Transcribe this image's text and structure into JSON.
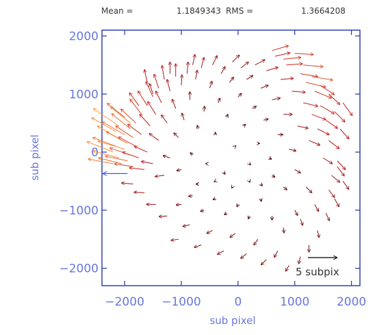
{
  "header": {
    "mean_label": "Mean =",
    "mean_value": "1.1849343",
    "rms_label": "RMS =",
    "rms_value": "1.3664208"
  },
  "chart_data": {
    "type": "quiver",
    "title": "",
    "xlabel": "sub pixel",
    "ylabel": "sub pixel",
    "xlim": [
      -2400,
      2150
    ],
    "ylim": [
      -2300,
      2100
    ],
    "xticks": [
      -2000,
      -1000,
      0,
      1000,
      2000
    ],
    "yticks": [
      -2000,
      -1000,
      0,
      1000,
      2000
    ],
    "xtick_labels": [
      "−2000",
      "−1000",
      "0",
      "1000",
      "2000"
    ],
    "ytick_labels": [
      "−2000",
      "−1000",
      "0",
      "1000",
      "2000"
    ],
    "legend": {
      "label": "5 subpix",
      "magnitude_subpix": 5,
      "placement": "bottom-right"
    },
    "reference_arrow": {
      "x": -1950,
      "y": -370,
      "u": -4.2,
      "v": 0,
      "color": "#4455ee"
    },
    "colors": {
      "axis": "#2233aa",
      "labels": "#6677dd",
      "arrow_low": "#3a0008",
      "arrow_mid": "#c01818",
      "arrow_high": "#ff9a40",
      "scale_arrow": "#000000"
    },
    "vectors": [
      [
        -2200,
        0,
        -4.5,
        1.8
      ],
      [
        -2150,
        100,
        -4.0,
        1.5
      ],
      [
        -2100,
        -100,
        -4.5,
        1.2
      ],
      [
        -2050,
        200,
        -4.2,
        2.5
      ],
      [
        -2000,
        300,
        -3.8,
        2.2
      ],
      [
        -2050,
        -200,
        -4.0,
        1.0
      ],
      [
        -2000,
        50,
        -4.6,
        1.4
      ],
      [
        -1950,
        150,
        -3.6,
        2.0
      ],
      [
        -1950,
        -150,
        -3.8,
        0.8
      ],
      [
        -1900,
        400,
        -3.2,
        2.6
      ],
      [
        -1900,
        -50,
        -3.5,
        1.2
      ],
      [
        -1850,
        250,
        -3.0,
        2.0
      ],
      [
        -1850,
        -250,
        -3.2,
        0.5
      ],
      [
        -1800,
        500,
        -2.6,
        2.4
      ],
      [
        -1800,
        100,
        -3.0,
        1.6
      ],
      [
        -1750,
        -100,
        -2.8,
        1.0
      ],
      [
        -1700,
        650,
        -2.0,
        2.6
      ],
      [
        -1700,
        300,
        -2.4,
        1.8
      ],
      [
        -1650,
        -300,
        -2.6,
        0.3
      ],
      [
        -1600,
        800,
        -1.6,
        2.5
      ],
      [
        -1600,
        0,
        -2.2,
        1.0
      ],
      [
        -1550,
        450,
        -1.8,
        2.0
      ],
      [
        -1500,
        950,
        -1.2,
        2.6
      ],
      [
        -1500,
        -200,
        -2.0,
        0.4
      ],
      [
        -1450,
        650,
        -1.4,
        2.2
      ],
      [
        -1400,
        1100,
        -0.8,
        2.4
      ],
      [
        -1400,
        200,
        -1.6,
        1.2
      ],
      [
        -1350,
        850,
        -1.0,
        2.0
      ],
      [
        -1300,
        1250,
        -0.4,
        2.4
      ],
      [
        -1300,
        -400,
        -1.6,
        -0.2
      ],
      [
        -1250,
        500,
        -1.0,
        1.4
      ],
      [
        -1200,
        1050,
        -0.5,
        2.0
      ],
      [
        -1200,
        -100,
        -1.2,
        0.4
      ],
      [
        -1100,
        1300,
        0.0,
        2.2
      ],
      [
        -1100,
        750,
        -0.6,
        1.6
      ],
      [
        -1050,
        250,
        -0.8,
        0.8
      ],
      [
        -1000,
        1150,
        0.1,
        1.8
      ],
      [
        -1000,
        -300,
        -0.8,
        -0.2
      ],
      [
        -950,
        550,
        -0.4,
        1.2
      ],
      [
        -900,
        1350,
        0.2,
        2.0
      ],
      [
        -850,
        900,
        0.0,
        1.4
      ],
      [
        -800,
        -50,
        -0.4,
        0.4
      ],
      [
        -750,
        1250,
        0.3,
        1.6
      ],
      [
        -700,
        400,
        -0.2,
        0.6
      ],
      [
        -650,
        1450,
        0.5,
        1.8
      ],
      [
        -600,
        700,
        0.1,
        0.9
      ],
      [
        -550,
        -200,
        -0.2,
        0.0
      ],
      [
        -500,
        1100,
        0.4,
        1.2
      ],
      [
        -450,
        1500,
        0.8,
        1.6
      ],
      [
        -400,
        300,
        0.0,
        0.4
      ],
      [
        -350,
        850,
        0.3,
        0.8
      ],
      [
        -300,
        1350,
        0.7,
        1.2
      ],
      [
        -250,
        -350,
        0.2,
        -0.3
      ],
      [
        -200,
        600,
        0.2,
        0.5
      ],
      [
        -150,
        1200,
        0.7,
        0.9
      ],
      [
        -100,
        1550,
        1.2,
        1.2
      ],
      [
        -50,
        100,
        0.1,
        0.1
      ],
      [
        0,
        950,
        0.6,
        0.6
      ],
      [
        50,
        1450,
        1.3,
        1.0
      ],
      [
        100,
        450,
        0.3,
        0.3
      ],
      [
        150,
        1250,
        1.1,
        0.7
      ],
      [
        200,
        -200,
        0.2,
        -0.2
      ],
      [
        250,
        750,
        0.7,
        0.4
      ],
      [
        300,
        1500,
        1.7,
        0.9
      ],
      [
        350,
        150,
        0.3,
        0.0
      ],
      [
        400,
        1100,
        1.3,
        0.5
      ],
      [
        450,
        550,
        0.8,
        0.2
      ],
      [
        500,
        1400,
        2.0,
        0.6
      ],
      [
        550,
        -100,
        0.4,
        -0.2
      ],
      [
        600,
        900,
        1.4,
        0.3
      ],
      [
        650,
        1650,
        2.6,
        0.6
      ],
      [
        700,
        300,
        0.9,
        0.0
      ],
      [
        750,
        1250,
        2.2,
        0.2
      ],
      [
        800,
        650,
        1.5,
        0.0
      ],
      [
        850,
        1500,
        2.8,
        0.2
      ],
      [
        900,
        50,
        1.2,
        -0.3
      ],
      [
        950,
        1050,
        2.3,
        -0.2
      ],
      [
        1000,
        1700,
        3.2,
        -0.2
      ],
      [
        1050,
        450,
        1.8,
        -0.4
      ],
      [
        1100,
        1350,
        3.0,
        -0.5
      ],
      [
        1150,
        850,
        2.5,
        -0.6
      ],
      [
        1200,
        1200,
        3.4,
        -0.8
      ],
      [
        1250,
        200,
        1.9,
        -0.8
      ],
      [
        1300,
        650,
        2.4,
        -0.9
      ],
      [
        1350,
        1050,
        2.9,
        -1.2
      ],
      [
        1400,
        400,
        2.0,
        -1.0
      ],
      [
        1450,
        800,
        2.4,
        -1.4
      ],
      [
        1500,
        -100,
        1.6,
        -1.0
      ],
      [
        1550,
        550,
        2.0,
        -1.4
      ],
      [
        1600,
        200,
        1.8,
        -1.4
      ],
      [
        1650,
        -400,
        1.4,
        -1.2
      ],
      [
        1700,
        700,
        1.8,
        -1.8
      ],
      [
        1750,
        -150,
        1.4,
        -1.5
      ],
      [
        1800,
        400,
        1.5,
        -1.7
      ],
      [
        1850,
        850,
        1.6,
        -2.2
      ],
      [
        1850,
        -500,
        1.0,
        -1.4
      ],
      [
        1700,
        -800,
        0.8,
        -1.4
      ],
      [
        1550,
        -1050,
        0.6,
        -1.3
      ],
      [
        1400,
        -1350,
        0.3,
        -1.2
      ],
      [
        1250,
        -1600,
        0.0,
        -1.2
      ],
      [
        1100,
        -1800,
        -0.3,
        -1.2
      ],
      [
        900,
        -1950,
        -0.6,
        -1.0
      ],
      [
        700,
        -1700,
        -0.6,
        -1.1
      ],
      [
        500,
        -1850,
        -0.9,
        -0.9
      ],
      [
        350,
        -1500,
        -0.7,
        -1.0
      ],
      [
        150,
        -1750,
        -1.0,
        -0.8
      ],
      [
        -50,
        -1400,
        -0.9,
        -0.7
      ],
      [
        -250,
        -1700,
        -1.1,
        -0.6
      ],
      [
        -450,
        -1350,
        -1.0,
        -0.5
      ],
      [
        -650,
        -1600,
        -1.2,
        -0.4
      ],
      [
        -850,
        -1250,
        -1.2,
        -0.3
      ],
      [
        -1050,
        -1500,
        -1.3,
        -0.2
      ],
      [
        -1250,
        -1100,
        -1.4,
        -0.1
      ],
      [
        -1450,
        -900,
        -1.6,
        0.0
      ],
      [
        -1650,
        -700,
        -1.8,
        0.1
      ],
      [
        -1850,
        -550,
        -2.0,
        0.2
      ],
      [
        1200,
        -600,
        1.0,
        -1.0
      ],
      [
        1000,
        -1000,
        0.5,
        -0.9
      ],
      [
        800,
        -1300,
        0.1,
        -0.9
      ],
      [
        600,
        -1100,
        0.0,
        -0.7
      ],
      [
        400,
        -800,
        0.1,
        -0.5
      ],
      [
        200,
        -1100,
        -0.2,
        -0.5
      ],
      [
        0,
        -900,
        -0.2,
        -0.4
      ],
      [
        -200,
        -1050,
        -0.4,
        -0.3
      ],
      [
        -400,
        -800,
        -0.4,
        -0.2
      ],
      [
        -600,
        -1000,
        -0.6,
        -0.2
      ],
      [
        -800,
        -750,
        -0.7,
        -0.1
      ],
      [
        -1000,
        -900,
        -0.9,
        -0.1
      ],
      [
        1000,
        -300,
        1.0,
        -0.6
      ],
      [
        800,
        -600,
        0.6,
        -0.5
      ],
      [
        600,
        -400,
        0.5,
        -0.3
      ],
      [
        400,
        -550,
        0.3,
        -0.3
      ],
      [
        200,
        -500,
        0.1,
        -0.2
      ],
      [
        -100,
        -600,
        -0.1,
        -0.2
      ],
      [
        -400,
        -500,
        -0.2,
        -0.1
      ],
      [
        -700,
        -550,
        -0.4,
        0.0
      ],
      [
        1100,
        -1150,
        0.4,
        -1.1
      ],
      [
        1350,
        -900,
        0.7,
        -1.2
      ],
      [
        1600,
        -650,
        1.0,
        -1.3
      ],
      [
        1750,
        -250,
        1.2,
        -1.6
      ],
      [
        1600,
        1000,
        1.9,
        -1.8
      ],
      [
        1450,
        1150,
        2.4,
        -1.6
      ],
      [
        -1500,
        1000,
        -0.6,
        1.8
      ],
      [
        -1750,
        800,
        -1.6,
        2.2
      ],
      [
        -2000,
        600,
        -3.0,
        2.4
      ],
      [
        -1600,
        1200,
        -0.5,
        2.2
      ],
      [
        -1200,
        1350,
        0.0,
        2.0
      ],
      [
        -800,
        1500,
        0.4,
        1.8
      ],
      [
        -2150,
        350,
        -4.2,
        2.4
      ],
      [
        -2200,
        -200,
        -4.3,
        0.8
      ],
      [
        -1900,
        500,
        -3.4,
        2.8
      ],
      [
        -2100,
        450,
        -4.4,
        3.0
      ],
      [
        600,
        1750,
        2.8,
        0.8
      ],
      [
        800,
        1600,
        3.0,
        0.3
      ],
      [
        1300,
        1300,
        3.6,
        -0.6
      ],
      [
        1150,
        1500,
        3.4,
        -0.3
      ]
    ]
  }
}
